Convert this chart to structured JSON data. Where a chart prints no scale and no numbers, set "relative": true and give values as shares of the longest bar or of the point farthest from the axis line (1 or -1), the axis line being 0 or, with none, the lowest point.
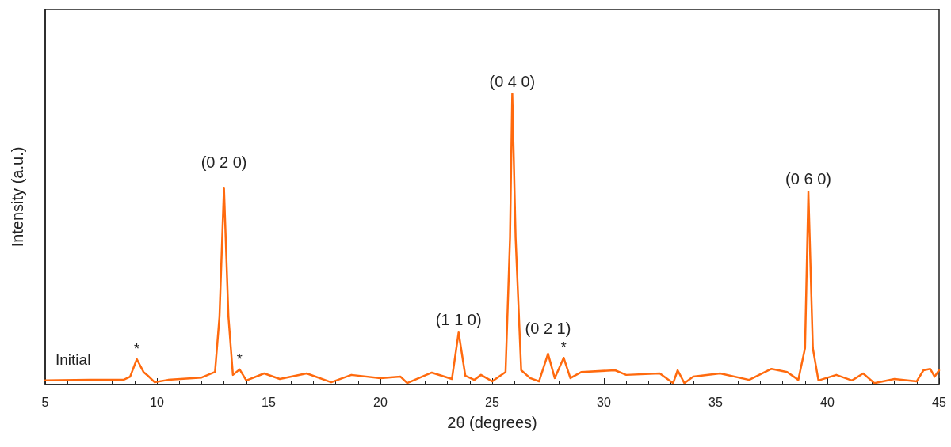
{
  "chart_data": {
    "type": "line",
    "xlabel": "2θ (degrees)",
    "ylabel": "Intensity (a.u.)",
    "relative": true,
    "xlim": [
      5,
      45
    ],
    "xticks": [
      5,
      10,
      15,
      20,
      25,
      30,
      35,
      40,
      45
    ],
    "grid": false,
    "legend": false,
    "marker": "none",
    "line_style": "solid",
    "series": [
      {
        "name": "Initial",
        "color": "#ff6a0e",
        "x": [
          5,
          7,
          8.5,
          8.8,
          9.1,
          9.4,
          9.6,
          9.9,
          10.5,
          12,
          12.6,
          12.8,
          13.0,
          13.2,
          13.4,
          13.7,
          14,
          14.8,
          15.5,
          16.7,
          17.8,
          18.7,
          20,
          20.9,
          21.2,
          22.3,
          23.2,
          23.5,
          23.8,
          24.2,
          24.5,
          25,
          25.6,
          25.8,
          25.9,
          26.05,
          26.3,
          26.7,
          27.1,
          27.5,
          27.8,
          28.2,
          28.5,
          29,
          30.5,
          31,
          32.5,
          33.1,
          33.3,
          33.6,
          34,
          35.2,
          36.5,
          37.5,
          38.2,
          38.7,
          39.0,
          39.15,
          39.35,
          39.6,
          40.4,
          41.1,
          41.6,
          42.1,
          43,
          44,
          44.3,
          44.6,
          44.8,
          45
        ],
        "values": [
          0.014,
          0.016,
          0.016,
          0.027,
          0.087,
          0.043,
          0.03,
          0.008,
          0.016,
          0.024,
          0.043,
          0.234,
          0.677,
          0.234,
          0.033,
          0.052,
          0.014,
          0.038,
          0.019,
          0.038,
          0.008,
          0.033,
          0.022,
          0.027,
          0.005,
          0.041,
          0.019,
          0.179,
          0.03,
          0.016,
          0.033,
          0.011,
          0.043,
          0.505,
          1,
          0.505,
          0.049,
          0.022,
          0.011,
          0.106,
          0.022,
          0.092,
          0.022,
          0.043,
          0.049,
          0.033,
          0.038,
          0.005,
          0.049,
          0.005,
          0.027,
          0.038,
          0.016,
          0.054,
          0.043,
          0.016,
          0.125,
          0.663,
          0.125,
          0.014,
          0.033,
          0.014,
          0.038,
          0.005,
          0.019,
          0.011,
          0.049,
          0.054,
          0.027,
          0.049
        ]
      }
    ],
    "annotations": [
      {
        "text": "*",
        "x": 9.1,
        "y": 0.087
      },
      {
        "text": "(0 2 0)",
        "x": 13.0,
        "y": 0.677
      },
      {
        "text": "*",
        "x": 13.7,
        "y": 0.052
      },
      {
        "text": "(1 1 0)",
        "x": 23.5,
        "y": 0.179
      },
      {
        "text": "(0 4 0)",
        "x": 25.9,
        "y": 1
      },
      {
        "text": "(0 2 1)",
        "x": 27.5,
        "y": 0.106
      },
      {
        "text": "*",
        "x": 28.2,
        "y": 0.092
      },
      {
        "text": "(0 6 0)",
        "x": 39.15,
        "y": 0.663
      }
    ]
  }
}
